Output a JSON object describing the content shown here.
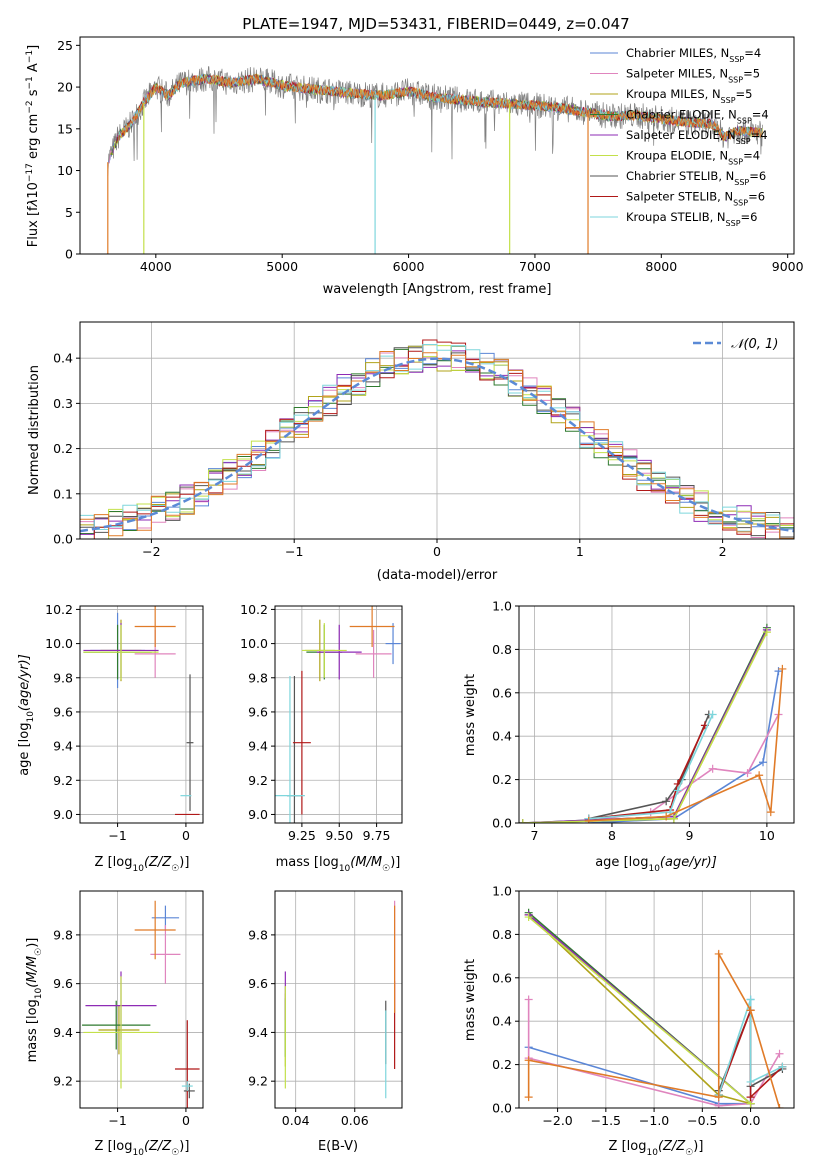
{
  "figure": {
    "title": "PLATE=1947, MJD=53431, FIBERID=0449, z=0.047"
  },
  "series_colors": {
    "Chabrier MILES": "#5b86d6",
    "Salpeter MILES": "#e085be",
    "Kroupa MILES": "#b0a31a",
    "Chabrier ELODIE": "#2f7a2f",
    "Salpeter ELODIE": "#8e2bb5",
    "Kroupa ELODIE": "#c3e04a",
    "Chabrier STELIB": "#555555",
    "Salpeter STELIB": "#b01818",
    "Kroupa STELIB": "#7ed6dc",
    "data": "#808080",
    "orange": "#e07b28",
    "normal": "#5b8ad6"
  },
  "chart_data": [
    {
      "id": "spectrum",
      "type": "line",
      "xlabel": "wavelength [Angstrom, rest frame]",
      "ylabel_parts": [
        "Flux [f",
        "λ",
        "10",
        "−17",
        " erg cm",
        "−2",
        " s",
        "−1",
        " A",
        "−1",
        "]"
      ],
      "xlim": [
        3400,
        9050
      ],
      "ylim": [
        0,
        26
      ],
      "xticks": [
        4000,
        5000,
        6000,
        7000,
        8000,
        9000
      ],
      "yticks": [
        0,
        5,
        10,
        15,
        20,
        25
      ],
      "grid": false,
      "legend_position": "right",
      "series": [
        {
          "name_main": "Chabrier MILES, N",
          "name_sub": "SSP",
          "name_tail": "=4"
        },
        {
          "name_main": "Salpeter MILES, N",
          "name_sub": "SSP",
          "name_tail": "=5"
        },
        {
          "name_main": "Kroupa MILES, N",
          "name_sub": "SSP",
          "name_tail": "=5"
        },
        {
          "name_main": "Chabrier ELODIE, N",
          "name_sub": "SSP",
          "name_tail": "=4"
        },
        {
          "name_main": "Salpeter ELODIE, N",
          "name_sub": "SSP",
          "name_tail": "=4"
        },
        {
          "name_main": "Kroupa ELODIE, N",
          "name_sub": "SSP",
          "name_tail": "=4"
        },
        {
          "name_main": "Chabrier STELIB, N",
          "name_sub": "SSP",
          "name_tail": "=6"
        },
        {
          "name_main": "Salpeter STELIB, N",
          "name_sub": "SSP",
          "name_tail": "=6"
        },
        {
          "name_main": "Kroupa STELIB, N",
          "name_sub": "SSP",
          "name_tail": "=6"
        }
      ],
      "spectrum_profile": [
        [
          3620,
          11
        ],
        [
          3700,
          14
        ],
        [
          3800,
          15.5
        ],
        [
          3900,
          18
        ],
        [
          4000,
          20
        ],
        [
          4100,
          19
        ],
        [
          4200,
          20.5
        ],
        [
          4400,
          21
        ],
        [
          4600,
          20.5
        ],
        [
          4800,
          21
        ],
        [
          5000,
          20.2
        ],
        [
          5200,
          19.8
        ],
        [
          5400,
          19.5
        ],
        [
          5600,
          19.2
        ],
        [
          5800,
          19
        ],
        [
          6000,
          19.5
        ],
        [
          6200,
          18.8
        ],
        [
          6400,
          18.5
        ],
        [
          6600,
          18.2
        ],
        [
          6800,
          18
        ],
        [
          7000,
          17.8
        ],
        [
          7200,
          17.5
        ],
        [
          7400,
          17
        ],
        [
          7600,
          16.5
        ],
        [
          7800,
          16.6
        ],
        [
          8000,
          16.2
        ],
        [
          8200,
          15.8
        ],
        [
          8400,
          15.6
        ],
        [
          8500,
          14
        ],
        [
          8600,
          14.8
        ],
        [
          8800,
          14.5
        ]
      ],
      "absorption_dips": [
        {
          "x": 3620,
          "y": 0
        },
        {
          "x": 3905,
          "y": 0
        },
        {
          "x": 5735,
          "y": 0
        },
        {
          "x": 6800,
          "y": 0
        },
        {
          "x": 7420,
          "y": 0
        }
      ]
    },
    {
      "id": "residual_histogram",
      "type": "histogram",
      "xlabel": "(data-model)/error",
      "ylabel": "Normed distribution",
      "xlim": [
        -2.5,
        2.5
      ],
      "ylim": [
        0,
        0.48
      ],
      "xticks": [
        -2,
        -1,
        0,
        1,
        2
      ],
      "xtick_labels": [
        "−2",
        "−1",
        "0",
        "1",
        "2"
      ],
      "yticks": [
        0,
        0.1,
        0.2,
        0.3,
        0.4
      ],
      "ytick_labels": [
        "0.0",
        "0.1",
        "0.2",
        "0.3",
        "0.4"
      ],
      "grid": true,
      "bin_width": 0.1,
      "curve": {
        "name": "𝒩(0, 1)",
        "mu": 0,
        "sigma": 1
      },
      "legend_position": "top-right"
    },
    {
      "id": "age_vs_Z",
      "type": "errorbar",
      "xlabel_parts": [
        "Z [log",
        "10",
        "(Z/Z",
        "☉",
        ")]"
      ],
      "ylabel_parts": [
        "age  [log",
        "10",
        "(age/yr)]"
      ],
      "xlim": [
        -1.55,
        0.25
      ],
      "ylim": [
        8.95,
        10.22
      ],
      "xticks": [
        -1,
        0
      ],
      "xtick_labels": [
        "−1",
        "0"
      ],
      "yticks": [
        9.0,
        9.2,
        9.4,
        9.6,
        9.8,
        10.0,
        10.2
      ],
      "ytick_labels": [
        "9.0",
        "9.2",
        "9.4",
        "9.6",
        "9.8",
        "10.0",
        "10.2"
      ],
      "grid": true,
      "points": [
        {
          "series": "Chabrier MILES",
          "x": -1.0,
          "xerr": 0.4,
          "y": 9.96,
          "yerr": 0.22
        },
        {
          "series": "Salpeter MILES",
          "x": -0.45,
          "xerr": 0.3,
          "y": 9.94,
          "yerr": 0.14
        },
        {
          "series": "Kroupa MILES",
          "x": -0.95,
          "xerr": 0.3,
          "y": 9.96,
          "yerr": 0.18
        },
        {
          "series": "Chabrier ELODIE",
          "x": -1.0,
          "xerr": 0.5,
          "y": 9.95,
          "yerr": 0.16
        },
        {
          "series": "Salpeter ELODIE",
          "x": -0.95,
          "xerr": 0.55,
          "y": 9.96,
          "yerr": 0.16
        },
        {
          "series": "Kroupa ELODIE",
          "x": -0.95,
          "xerr": 0.55,
          "y": 9.95,
          "yerr": 0.16
        },
        {
          "series": "Chabrier STELIB",
          "x": 0.06,
          "xerr": 0.05,
          "y": 9.42,
          "yerr": 0.4
        },
        {
          "series": "Salpeter STELIB",
          "x": 0.02,
          "xerr": 0.18,
          "y": 9.0,
          "yerr": 0.0
        },
        {
          "series": "Kroupa STELIB",
          "x": 0.0,
          "xerr": 0.08,
          "y": 9.11,
          "yerr": 0.0
        },
        {
          "series": "orange",
          "x": -0.45,
          "xerr": 0.3,
          "y": 10.1,
          "yerr": 0.12
        }
      ]
    },
    {
      "id": "age_vs_mass",
      "type": "errorbar",
      "xlabel_parts": [
        "mass [log",
        "10",
        "(M/M",
        "☉",
        ")]"
      ],
      "ylabel_parts": [],
      "xlim": [
        9.07,
        9.92
      ],
      "ylim": [
        8.95,
        10.22
      ],
      "xticks": [
        9.25,
        9.5,
        9.75
      ],
      "xtick_labels": [
        "9.25",
        "9.50",
        "9.75"
      ],
      "yticks": [
        9.0,
        9.2,
        9.4,
        9.6,
        9.8,
        10.0,
        10.2
      ],
      "ytick_labels": [
        "9.0",
        "9.2",
        "9.4",
        "9.6",
        "9.8",
        "10.0",
        "10.2"
      ],
      "grid": true,
      "points": [
        {
          "series": "Chabrier MILES",
          "x": 9.86,
          "xerr": 0.05,
          "y": 10.0,
          "yerr": 0.12
        },
        {
          "series": "Salpeter MILES",
          "x": 9.73,
          "xerr": 0.12,
          "y": 9.94,
          "yerr": 0.14
        },
        {
          "series": "Kroupa MILES",
          "x": 9.37,
          "xerr": 0.1,
          "y": 9.96,
          "yerr": 0.18
        },
        {
          "series": "Chabrier ELODIE",
          "x": 9.4,
          "xerr": 0.12,
          "y": 9.95,
          "yerr": 0.16
        },
        {
          "series": "Salpeter ELODIE",
          "x": 9.5,
          "xerr": 0.15,
          "y": 9.95,
          "yerr": 0.16
        },
        {
          "series": "Kroupa ELODIE",
          "x": 9.4,
          "xerr": 0.15,
          "y": 9.96,
          "yerr": 0.16
        },
        {
          "series": "Chabrier STELIB",
          "x": 9.2,
          "xerr": 0.05,
          "y": 9.11,
          "yerr": 0.7
        },
        {
          "series": "Salpeter STELIB",
          "x": 9.25,
          "xerr": 0.06,
          "y": 9.42,
          "yerr": 0.42
        },
        {
          "series": "Kroupa STELIB",
          "x": 9.17,
          "xerr": 0.1,
          "y": 9.11,
          "yerr": 0.7
        },
        {
          "series": "orange",
          "x": 9.72,
          "xerr": 0.15,
          "y": 10.1,
          "yerr": 0.12
        }
      ]
    },
    {
      "id": "weight_vs_age",
      "type": "line",
      "xlabel_parts": [
        "age  [log",
        "10",
        "(age/yr)]"
      ],
      "ylabel": "mass weight",
      "xlim": [
        6.8,
        10.35
      ],
      "ylim": [
        0,
        1.0
      ],
      "xticks": [
        7,
        8,
        9,
        10
      ],
      "yticks": [
        0,
        0.2,
        0.4,
        0.6,
        0.8,
        1.0
      ],
      "ytick_labels": [
        "0.0",
        "0.2",
        "0.4",
        "0.6",
        "0.8",
        "1.0"
      ],
      "grid": true,
      "series": [
        {
          "series": "Chabrier MILES",
          "x": [
            7.7,
            8.8,
            9.95,
            10.15
          ],
          "y": [
            0.0,
            0.02,
            0.28,
            0.7
          ]
        },
        {
          "series": "Salpeter MILES",
          "x": [
            7.7,
            8.5,
            9.3,
            9.75,
            10.15
          ],
          "y": [
            0.01,
            0.05,
            0.25,
            0.23,
            0.5
          ]
        },
        {
          "series": "Kroupa MILES",
          "x": [
            6.85,
            8.8,
            10.0
          ],
          "y": [
            0.0,
            0.02,
            0.88
          ]
        },
        {
          "series": "Chabrier ELODIE",
          "x": [
            6.85,
            8.8,
            10.0
          ],
          "y": [
            0.0,
            0.03,
            0.9
          ]
        },
        {
          "series": "Salpeter ELODIE",
          "x": [
            6.85,
            8.8,
            10.0
          ],
          "y": [
            0.0,
            0.03,
            0.89
          ]
        },
        {
          "series": "Kroupa ELODIE",
          "x": [
            6.85,
            8.8,
            10.0
          ],
          "y": [
            0.0,
            0.02,
            0.88
          ]
        },
        {
          "series": "Chabrier STELIB",
          "x": [
            7.7,
            8.7,
            8.9,
            9.25
          ],
          "y": [
            0.02,
            0.1,
            0.2,
            0.5
          ]
        },
        {
          "series": "Salpeter STELIB",
          "x": [
            7.7,
            8.75,
            8.85,
            9.2
          ],
          "y": [
            0.02,
            0.06,
            0.18,
            0.45
          ]
        },
        {
          "series": "Kroupa STELIB",
          "x": [
            7.7,
            8.75,
            8.85,
            9.3
          ],
          "y": [
            0.02,
            0.05,
            0.15,
            0.5
          ]
        },
        {
          "series": "orange",
          "x": [
            7.7,
            8.7,
            9.9,
            10.05,
            10.2
          ],
          "y": [
            0.01,
            0.03,
            0.22,
            0.05,
            0.71
          ]
        }
      ]
    },
    {
      "id": "mass_vs_Z",
      "type": "errorbar",
      "xlabel_parts": [
        "Z [log",
        "10",
        "(Z/Z",
        "☉",
        ")]"
      ],
      "ylabel_parts": [
        "mass [log",
        "10",
        "(M/M",
        "☉",
        ")]"
      ],
      "xlim": [
        -1.55,
        0.25
      ],
      "ylim": [
        9.09,
        9.98
      ],
      "xticks": [
        -1,
        0
      ],
      "xtick_labels": [
        "−1",
        "0"
      ],
      "yticks": [
        9.2,
        9.4,
        9.6,
        9.8
      ],
      "ytick_labels": [
        "9.2",
        "9.4",
        "9.6",
        "9.8"
      ],
      "grid": true,
      "points": [
        {
          "series": "Chabrier MILES",
          "x": -0.3,
          "xerr": 0.2,
          "y": 9.87,
          "yerr": 0.05
        },
        {
          "series": "Salpeter MILES",
          "x": -0.3,
          "xerr": 0.22,
          "y": 9.72,
          "yerr": 0.12
        },
        {
          "series": "Kroupa MILES",
          "x": -0.98,
          "xerr": 0.3,
          "y": 9.41,
          "yerr": 0.1
        },
        {
          "series": "Chabrier ELODIE",
          "x": -1.02,
          "xerr": 0.5,
          "y": 9.43,
          "yerr": 0.1
        },
        {
          "series": "Salpeter ELODIE",
          "x": -0.95,
          "xerr": 0.52,
          "y": 9.51,
          "yerr": 0.14
        },
        {
          "series": "Kroupa ELODIE",
          "x": -0.95,
          "xerr": 0.55,
          "y": 9.4,
          "yerr": 0.23
        },
        {
          "series": "Chabrier STELIB",
          "x": 0.05,
          "xerr": 0.08,
          "y": 9.16,
          "yerr": 0.03
        },
        {
          "series": "Salpeter STELIB",
          "x": 0.02,
          "xerr": 0.18,
          "y": 9.25,
          "yerr": 0.2
        },
        {
          "series": "Kroupa STELIB",
          "x": 0.02,
          "xerr": 0.08,
          "y": 9.18,
          "yerr": 0.02
        },
        {
          "series": "orange",
          "x": -0.45,
          "xerr": 0.3,
          "y": 9.82,
          "yerr": 0.12
        }
      ]
    },
    {
      "id": "mass_vs_EBV",
      "type": "errorbar",
      "xlabel": "E(B-V)",
      "ylabel_parts": [],
      "xlim": [
        0.033,
        0.076
      ],
      "ylim": [
        9.09,
        9.98
      ],
      "xticks": [
        0.04,
        0.06
      ],
      "xtick_labels": [
        "0.04",
        "0.06"
      ],
      "yticks": [
        9.2,
        9.4,
        9.6,
        9.8
      ],
      "ytick_labels": [
        "9.2",
        "9.4",
        "9.6",
        "9.8"
      ],
      "grid": true,
      "points": [
        {
          "series": "Kroupa MILES",
          "x": 0.0365,
          "xerr": 0,
          "y": 9.41,
          "yerr": 0.15
        },
        {
          "series": "Chabrier ELODIE",
          "x": 0.0365,
          "xerr": 0,
          "y": 9.42,
          "yerr": 0.12
        },
        {
          "series": "Salpeter ELODIE",
          "x": 0.0365,
          "xerr": 0,
          "y": 9.55,
          "yerr": 0.1
        },
        {
          "series": "Kroupa ELODIE",
          "x": 0.0365,
          "xerr": 0,
          "y": 9.38,
          "yerr": 0.21
        },
        {
          "series": "Chabrier STELIB",
          "x": 0.0705,
          "xerr": 0,
          "y": 9.4,
          "yerr": 0.13
        },
        {
          "series": "Kroupa STELIB",
          "x": 0.0705,
          "xerr": 0,
          "y": 9.31,
          "yerr": 0.18
        },
        {
          "series": "Salpeter STELIB",
          "x": 0.0735,
          "xerr": 0,
          "y": 9.43,
          "yerr": 0.18
        },
        {
          "series": "Salpeter MILES",
          "x": 0.0735,
          "xerr": 0,
          "y": 9.72,
          "yerr": 0.22
        },
        {
          "series": "orange",
          "x": 0.0735,
          "xerr": 0,
          "y": 9.7,
          "yerr": 0.22
        }
      ]
    },
    {
      "id": "weight_vs_Z",
      "type": "line",
      "xlabel_parts": [
        "Z [log",
        "10",
        "(Z/Z",
        "☉",
        ")]"
      ],
      "ylabel": "mass weight",
      "xlim": [
        -2.4,
        0.45
      ],
      "ylim": [
        0,
        1.0
      ],
      "xticks": [
        -2.0,
        -1.5,
        -1.0,
        -0.5,
        0.0
      ],
      "xtick_labels": [
        "−2.0",
        "−1.5",
        "−1.0",
        "−0.5",
        "0.0"
      ],
      "yticks": [
        0,
        0.2,
        0.4,
        0.6,
        0.8,
        1.0
      ],
      "ytick_labels": [
        "0.0",
        "0.2",
        "0.4",
        "0.6",
        "0.8",
        "1.0"
      ],
      "grid": true,
      "series": [
        {
          "series": "Chabrier MILES",
          "x": [
            -2.3,
            -0.33,
            0.0,
            0.0
          ],
          "y": [
            0.28,
            0.02,
            0.02,
            0.5
          ]
        },
        {
          "series": "Salpeter MILES",
          "x": [
            -2.3,
            -2.3,
            -0.33,
            0.0,
            0.3
          ],
          "y": [
            0.5,
            0.23,
            0.01,
            0.02,
            0.25
          ]
        },
        {
          "series": "Kroupa MILES",
          "x": [
            -2.3,
            -0.33,
            0.0
          ],
          "y": [
            0.89,
            0.06,
            0.02
          ]
        },
        {
          "series": "Chabrier ELODIE",
          "x": [
            -2.3,
            0.0
          ],
          "y": [
            0.9,
            0.02
          ]
        },
        {
          "series": "Salpeter ELODIE",
          "x": [
            -2.3,
            0.0
          ],
          "y": [
            0.89,
            0.02
          ]
        },
        {
          "series": "Kroupa ELODIE",
          "x": [
            -2.3,
            0.0
          ],
          "y": [
            0.88,
            0.02
          ]
        },
        {
          "series": "Chabrier STELIB",
          "x": [
            -0.33,
            0.0,
            0.0,
            0.33
          ],
          "y": [
            0.08,
            0.45,
            0.1,
            0.18
          ]
        },
        {
          "series": "Salpeter STELIB",
          "x": [
            -0.33,
            0.0,
            0.0,
            0.33
          ],
          "y": [
            0.06,
            0.45,
            0.05,
            0.19
          ]
        },
        {
          "series": "Kroupa STELIB",
          "x": [
            -0.33,
            0.0,
            0.0,
            0.33
          ],
          "y": [
            0.06,
            0.5,
            0.12,
            0.19
          ]
        },
        {
          "series": "orange",
          "x": [
            -2.3,
            -2.3,
            -0.33,
            -0.33,
            0.0,
            0.3
          ],
          "y": [
            0.05,
            0.22,
            0.05,
            0.71,
            0.45,
            0.0
          ]
        }
      ]
    }
  ]
}
